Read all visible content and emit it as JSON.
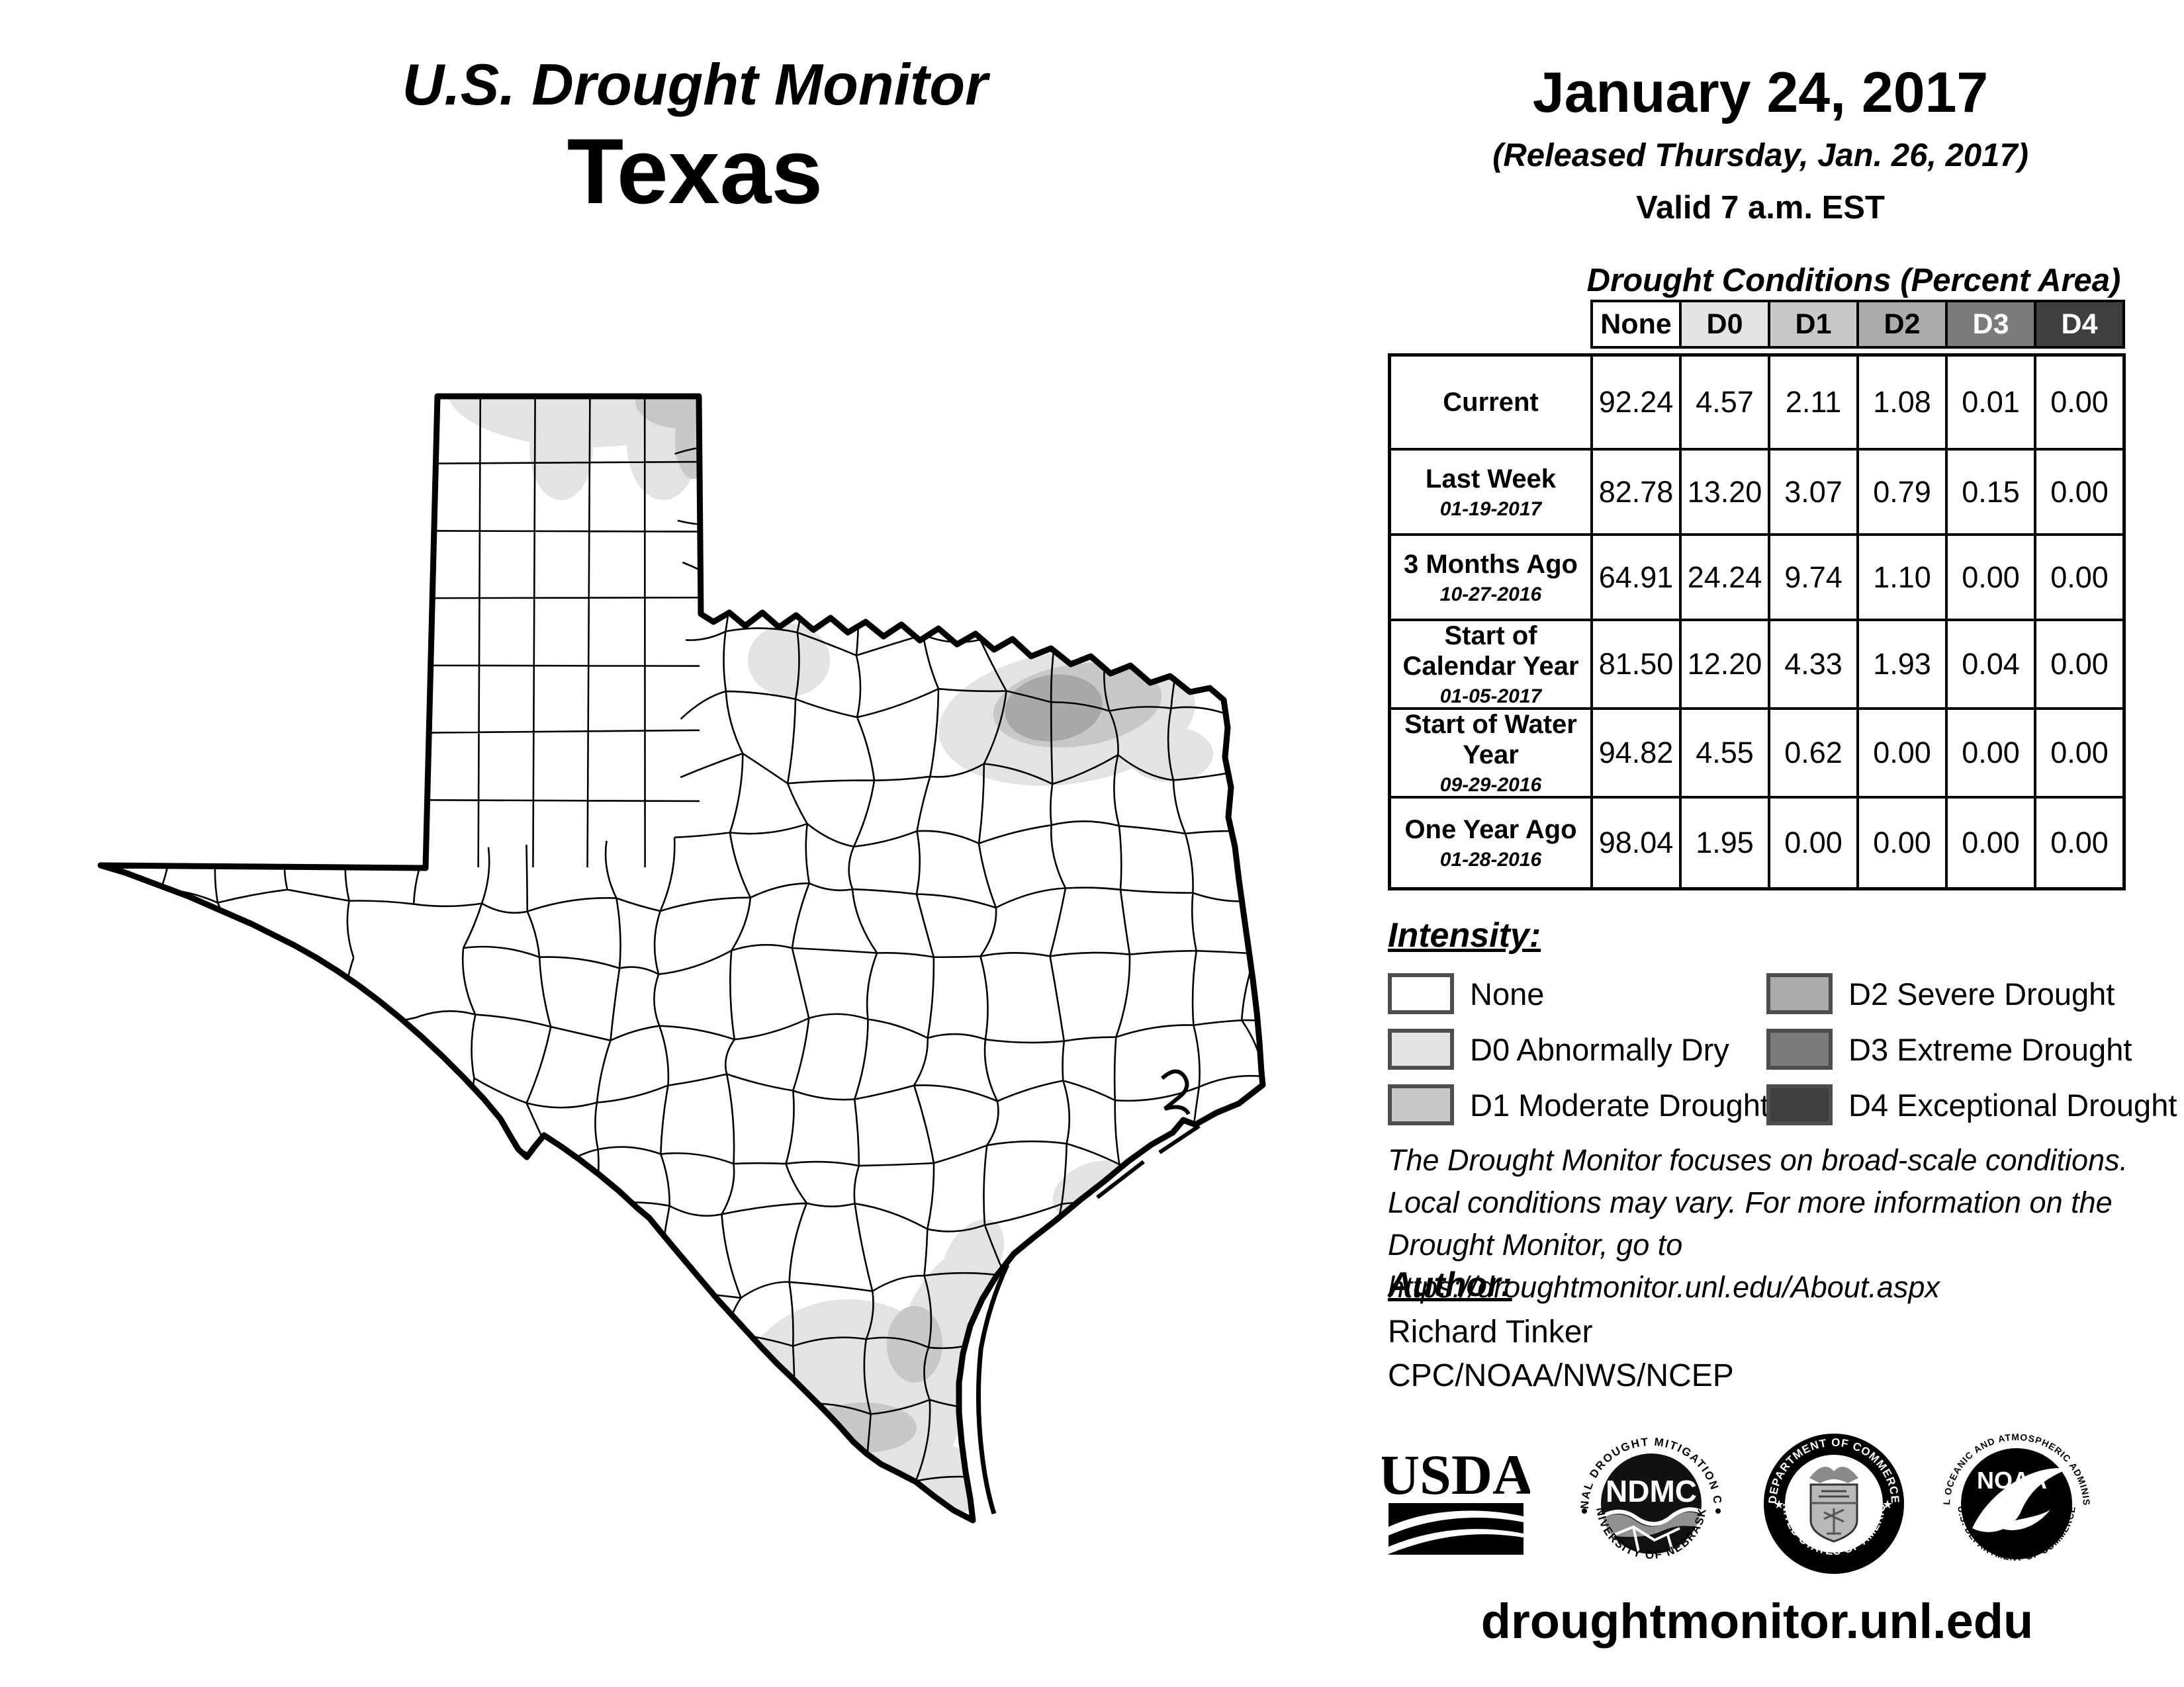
{
  "title": {
    "line1": "U.S. Drought Monitor",
    "line2": "Texas"
  },
  "date_block": {
    "date": "January 24, 2017",
    "released": "(Released Thursday, Jan. 26, 2017)",
    "valid": "Valid 7 a.m. EST"
  },
  "table": {
    "title": "Drought Conditions (Percent Area)",
    "columns": [
      {
        "label": "None",
        "bg": "#ffffff",
        "fg": "#000000"
      },
      {
        "label": "D0",
        "bg": "#e4e4e4",
        "fg": "#000000"
      },
      {
        "label": "D1",
        "bg": "#c8c8c8",
        "fg": "#000000"
      },
      {
        "label": "D2",
        "bg": "#ababab",
        "fg": "#000000"
      },
      {
        "label": "D3",
        "bg": "#7b7b7b",
        "fg": "#ffffff"
      },
      {
        "label": "D4",
        "bg": "#3f3f3f",
        "fg": "#ffffff"
      }
    ],
    "rows": [
      {
        "label": "Current",
        "date": "",
        "values": [
          "92.24",
          "4.57",
          "2.11",
          "1.08",
          "0.01",
          "0.00"
        ]
      },
      {
        "label": "Last Week",
        "date": "01-19-2017",
        "values": [
          "82.78",
          "13.20",
          "3.07",
          "0.79",
          "0.15",
          "0.00"
        ]
      },
      {
        "label": "3 Months Ago",
        "date": "10-27-2016",
        "values": [
          "64.91",
          "24.24",
          "9.74",
          "1.10",
          "0.00",
          "0.00"
        ]
      },
      {
        "label": "Start of Calendar Year",
        "date": "01-05-2017",
        "values": [
          "81.50",
          "12.20",
          "4.33",
          "1.93",
          "0.04",
          "0.00"
        ]
      },
      {
        "label": "Start of Water Year",
        "date": "09-29-2016",
        "values": [
          "94.82",
          "4.55",
          "0.62",
          "0.00",
          "0.00",
          "0.00"
        ]
      },
      {
        "label": "One Year Ago",
        "date": "01-28-2016",
        "values": [
          "98.04",
          "1.95",
          "0.00",
          "0.00",
          "0.00",
          "0.00"
        ]
      }
    ]
  },
  "legend": {
    "heading": "Intensity:",
    "items": [
      {
        "label": "None",
        "color": "#ffffff"
      },
      {
        "label": "D0 Abnormally Dry",
        "color": "#e4e4e4"
      },
      {
        "label": "D1 Moderate Drought",
        "color": "#c8c8c8"
      },
      {
        "label": "D2 Severe Drought",
        "color": "#ababab"
      },
      {
        "label": "D3 Extreme Drought",
        "color": "#7b7b7b"
      },
      {
        "label": "D4 Exceptional Drought",
        "color": "#3f3f3f"
      }
    ]
  },
  "notes": {
    "lines": [
      "The Drought Monitor focuses on broad-scale conditions.",
      "Local conditions may vary. For more information on the",
      "Drought Monitor, go to https://droughtmonitor.unl.edu/About.aspx"
    ]
  },
  "author": {
    "heading": "Author:",
    "name": "Richard Tinker",
    "org": "CPC/NOAA/NWS/NCEP"
  },
  "footer": {
    "url": "droughtmonitor.unl.edu"
  },
  "logos": {
    "usda": {
      "text": "USDA"
    },
    "ndmc": {
      "text": "NDMC",
      "ring_top": "NATIONAL DROUGHT MITIGATION CENTER",
      "ring_bottom": "UNIVERSITY OF NEBRASKA"
    },
    "doc": {
      "ring_top": "DEPARTMENT OF COMMERCE",
      "ring_bottom": "UNITED STATES OF AMERICA"
    },
    "noaa": {
      "text": "NOAA",
      "ring_top": "NATIONAL OCEANIC AND ATMOSPHERIC ADMINISTRATION",
      "ring_bottom": "U.S. DEPARTMENT OF COMMERCE"
    }
  },
  "map": {
    "state": "Texas",
    "d0_color": "#e3e3e3",
    "d1_color": "#c8c8c8",
    "d2_color": "#a8a8a8",
    "outline_color": "#000000"
  }
}
